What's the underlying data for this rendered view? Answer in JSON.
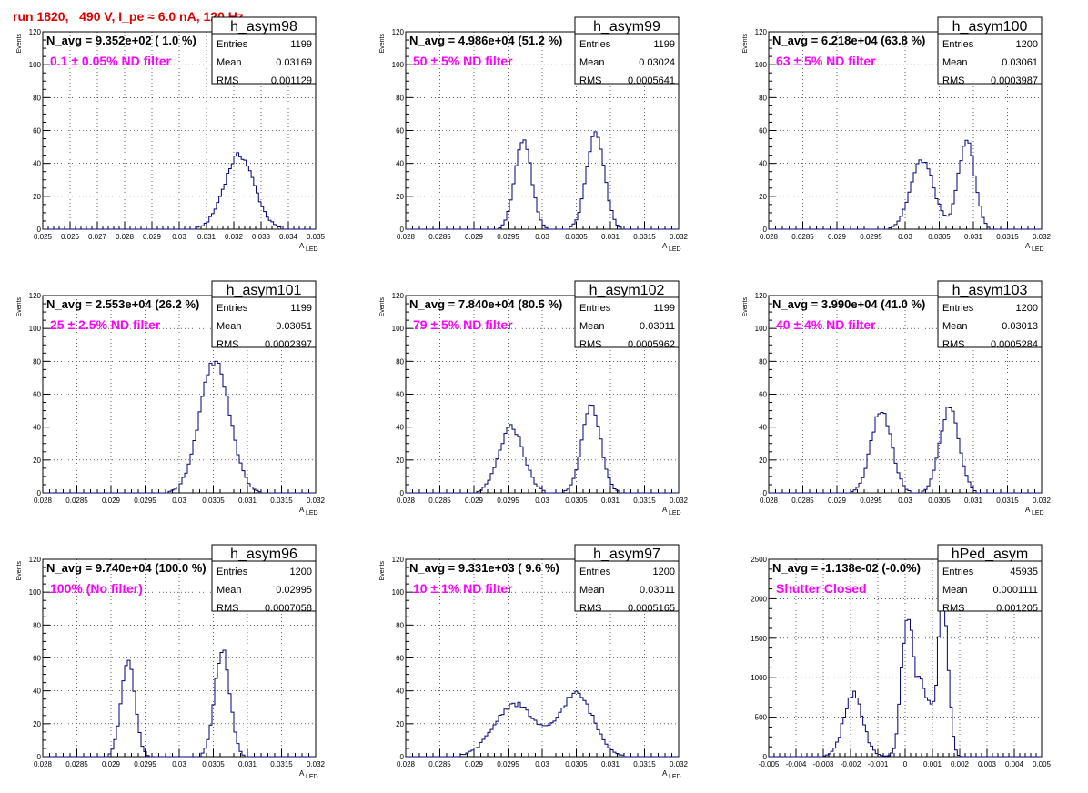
{
  "title": "run 1820,   490 V, I_pe ≈ 6.0 nA, 120 Hz",
  "chart_data": [
    {
      "type": "histogram",
      "name": "h_asym98",
      "navg": "N_avg = 9.352e+02 ( 1.0 %)",
      "note": "0.1 ± 0.05% ND filter",
      "stats": {
        "Entries": "1199",
        "Mean": "0.03169",
        "RMS": "0.001129"
      },
      "ylabel": "Events",
      "xlabel": "A",
      "xlabel_sub": "LED",
      "xlim": [
        0.025,
        0.035
      ],
      "ylim": [
        0,
        120
      ],
      "xticks": [
        0.025,
        0.026,
        0.027,
        0.028,
        0.029,
        0.03,
        0.031,
        0.032,
        0.033,
        0.034,
        0.035
      ],
      "xtick_labels": [
        "0.025",
        "0.026",
        "0.027",
        "0.028",
        "0.029",
        "0.03",
        "0.031",
        "0.032",
        "0.033",
        "0.034",
        "0.035"
      ],
      "yticks": [
        0,
        20,
        40,
        60,
        80,
        100,
        120
      ],
      "peaks": [
        {
          "center": 0.0322,
          "sigma": 0.00055,
          "amp": 45
        }
      ],
      "bins": 110
    },
    {
      "type": "histogram",
      "name": "h_asym99",
      "navg": "N_avg = 4.986e+04 (51.2 %)",
      "note": "50 ± 5% ND filter",
      "stats": {
        "Entries": "1199",
        "Mean": "0.03024",
        "RMS": "0.0005641"
      },
      "ylabel": "Events",
      "xlabel": "A",
      "xlabel_sub": "LED",
      "xlim": [
        0.028,
        0.032
      ],
      "ylim": [
        0,
        120
      ],
      "xticks": [
        0.028,
        0.0285,
        0.029,
        0.0295,
        0.03,
        0.0305,
        0.031,
        0.0315,
        0.032
      ],
      "xtick_labels": [
        "0.028",
        "0.0285",
        "0.029",
        "0.0295",
        "0.03",
        "0.0305",
        "0.031",
        "0.0315",
        "0.032"
      ],
      "yticks": [
        0,
        20,
        40,
        60,
        80,
        100,
        120
      ],
      "peaks": [
        {
          "center": 0.02972,
          "sigma": 0.00012,
          "amp": 55
        },
        {
          "center": 0.03078,
          "sigma": 0.00013,
          "amp": 58
        }
      ],
      "bins": 100
    },
    {
      "type": "histogram",
      "name": "h_asym100",
      "navg": "N_avg = 6.218e+04 (63.8 %)",
      "note": "63 ± 5% ND filter",
      "stats": {
        "Entries": "1200",
        "Mean": "0.03061",
        "RMS": "0.0003987"
      },
      "ylabel": "Events",
      "xlabel": "A",
      "xlabel_sub": "LED",
      "xlim": [
        0.028,
        0.032
      ],
      "ylim": [
        0,
        120
      ],
      "xticks": [
        0.028,
        0.0285,
        0.029,
        0.0295,
        0.03,
        0.0305,
        0.031,
        0.0315,
        0.032
      ],
      "xtick_labels": [
        "0.028",
        "0.0285",
        "0.029",
        "0.0295",
        "0.03",
        "0.0305",
        "0.031",
        "0.0315",
        "0.032"
      ],
      "yticks": [
        0,
        20,
        40,
        60,
        80,
        100,
        120
      ],
      "peaks": [
        {
          "center": 0.03025,
          "sigma": 0.00017,
          "amp": 42
        },
        {
          "center": 0.0309,
          "sigma": 0.00012,
          "amp": 54
        }
      ],
      "bins": 100
    },
    {
      "type": "histogram",
      "name": "h_asym101",
      "navg": "N_avg = 2.553e+04 (26.2 %)",
      "note": "25 ± 2.5% ND filter",
      "stats": {
        "Entries": "1199",
        "Mean": "0.03051",
        "RMS": "0.0002397"
      },
      "ylabel": "Events",
      "xlabel": "A",
      "xlabel_sub": "LED",
      "xlim": [
        0.028,
        0.032
      ],
      "ylim": [
        0,
        120
      ],
      "xticks": [
        0.028,
        0.0285,
        0.029,
        0.0295,
        0.03,
        0.0305,
        0.031,
        0.0315,
        0.032
      ],
      "xtick_labels": [
        "0.028",
        "0.0285",
        "0.029",
        "0.0295",
        "0.03",
        "0.0305",
        "0.031",
        "0.0315",
        "0.032"
      ],
      "yticks": [
        0,
        20,
        40,
        60,
        80,
        100,
        120
      ],
      "peaks": [
        {
          "center": 0.03052,
          "sigma": 0.00022,
          "amp": 80
        }
      ],
      "bins": 100
    },
    {
      "type": "histogram",
      "name": "h_asym102",
      "navg": "N_avg = 7.840e+04 (80.5 %)",
      "note": "79 ± 5% ND filter",
      "stats": {
        "Entries": "1199",
        "Mean": "0.03011",
        "RMS": "0.0005962"
      },
      "ylabel": "Events",
      "xlabel": "A",
      "xlabel_sub": "LED",
      "xlim": [
        0.028,
        0.032
      ],
      "ylim": [
        0,
        120
      ],
      "xticks": [
        0.028,
        0.0285,
        0.029,
        0.0295,
        0.03,
        0.0305,
        0.031,
        0.0315,
        0.032
      ],
      "xtick_labels": [
        "0.028",
        "0.0285",
        "0.029",
        "0.0295",
        "0.03",
        "0.0305",
        "0.031",
        "0.0315",
        "0.032"
      ],
      "yticks": [
        0,
        20,
        40,
        60,
        80,
        100,
        120
      ],
      "peaks": [
        {
          "center": 0.02955,
          "sigma": 0.00018,
          "amp": 40
        },
        {
          "center": 0.03072,
          "sigma": 0.00014,
          "amp": 52
        }
      ],
      "bins": 100
    },
    {
      "type": "histogram",
      "name": "h_asym103",
      "navg": "N_avg = 3.990e+04 (41.0 %)",
      "note": "40 ± 4% ND filter",
      "stats": {
        "Entries": "1200",
        "Mean": "0.03013",
        "RMS": "0.0005284"
      },
      "ylabel": "Events",
      "xlabel": "A",
      "xlabel_sub": "LED",
      "xlim": [
        0.028,
        0.032
      ],
      "ylim": [
        0,
        120
      ],
      "xticks": [
        0.028,
        0.0285,
        0.029,
        0.0295,
        0.03,
        0.0305,
        0.031,
        0.0315,
        0.032
      ],
      "xtick_labels": [
        "0.028",
        "0.0285",
        "0.029",
        "0.0295",
        "0.03",
        "0.0305",
        "0.031",
        "0.0315",
        "0.032"
      ],
      "yticks": [
        0,
        20,
        40,
        60,
        80,
        100,
        120
      ],
      "peaks": [
        {
          "center": 0.02965,
          "sigma": 0.00015,
          "amp": 50
        },
        {
          "center": 0.03065,
          "sigma": 0.00014,
          "amp": 52
        }
      ],
      "bins": 100
    },
    {
      "type": "histogram",
      "name": "h_asym96",
      "navg": "N_avg = 9.740e+04 (100.0 %)",
      "note": "100% (No filter)",
      "stats": {
        "Entries": "1200",
        "Mean": "0.02995",
        "RMS": "0.0007058"
      },
      "ylabel": "Events",
      "xlabel": "A",
      "xlabel_sub": "LED",
      "xlim": [
        0.028,
        0.032
      ],
      "ylim": [
        0,
        120
      ],
      "xticks": [
        0.028,
        0.0285,
        0.029,
        0.0295,
        0.03,
        0.0305,
        0.031,
        0.0315,
        0.032
      ],
      "xtick_labels": [
        "0.028",
        "0.0285",
        "0.029",
        "0.0295",
        "0.03",
        "0.0305",
        "0.031",
        "0.0315",
        "0.032"
      ],
      "yticks": [
        0,
        20,
        40,
        60,
        80,
        100,
        120
      ],
      "peaks": [
        {
          "center": 0.02925,
          "sigma": 0.0001,
          "amp": 60
        },
        {
          "center": 0.03063,
          "sigma": 0.00011,
          "amp": 65
        }
      ],
      "bins": 100
    },
    {
      "type": "histogram",
      "name": "h_asym97",
      "navg": "N_avg = 9.331e+03 ( 9.6 %)",
      "note": "10 ± 1% ND filter",
      "stats": {
        "Entries": "1200",
        "Mean": "0.03011",
        "RMS": "0.0005165"
      },
      "ylabel": "Events",
      "xlabel": "A",
      "xlabel_sub": "LED",
      "xlim": [
        0.028,
        0.032
      ],
      "ylim": [
        0,
        120
      ],
      "xticks": [
        0.028,
        0.0285,
        0.029,
        0.0295,
        0.03,
        0.0305,
        0.031,
        0.0315,
        0.032
      ],
      "xtick_labels": [
        "0.028",
        "0.0285",
        "0.029",
        "0.0295",
        "0.03",
        "0.0305",
        "0.031",
        "0.0315",
        "0.032"
      ],
      "yticks": [
        0,
        20,
        40,
        60,
        80,
        100,
        120
      ],
      "peaks": [
        {
          "center": 0.0296,
          "sigma": 0.0003,
          "amp": 32
        },
        {
          "center": 0.0305,
          "sigma": 0.00025,
          "amp": 38
        }
      ],
      "bins": 100
    },
    {
      "type": "histogram",
      "name": "hPed_asym",
      "navg": "N_avg = -1.138e-02 (-0.0%)",
      "note": "Shutter Closed",
      "stats": {
        "Entries": "45935",
        "Mean": "0.0001111",
        "RMS": "0.001205"
      },
      "ylabel": "",
      "xlabel": "",
      "xlabel_sub": "",
      "xlim": [
        -0.005,
        0.005
      ],
      "ylim": [
        0,
        2500
      ],
      "xticks": [
        -0.005,
        -0.004,
        -0.003,
        -0.002,
        -0.001,
        0,
        0.001,
        0.002,
        0.003,
        0.004,
        0.005
      ],
      "xtick_labels": [
        "-0.005",
        "-0.004",
        "-0.003",
        "-0.002",
        "-0.001",
        "0",
        "0.001",
        "0.002",
        "0.003",
        "0.004",
        "0.005"
      ],
      "yticks": [
        0,
        500,
        1000,
        1500,
        2000,
        2500
      ],
      "peaks": [
        {
          "center": -0.0019,
          "sigma": 0.00035,
          "amp": 780
        },
        {
          "center": 5e-05,
          "sigma": 0.0002,
          "amp": 1500
        },
        {
          "center": 0.0006,
          "sigma": 0.00035,
          "amp": 900
        },
        {
          "center": 0.0014,
          "sigma": 0.00018,
          "amp": 2000
        }
      ],
      "bins": 110
    }
  ]
}
